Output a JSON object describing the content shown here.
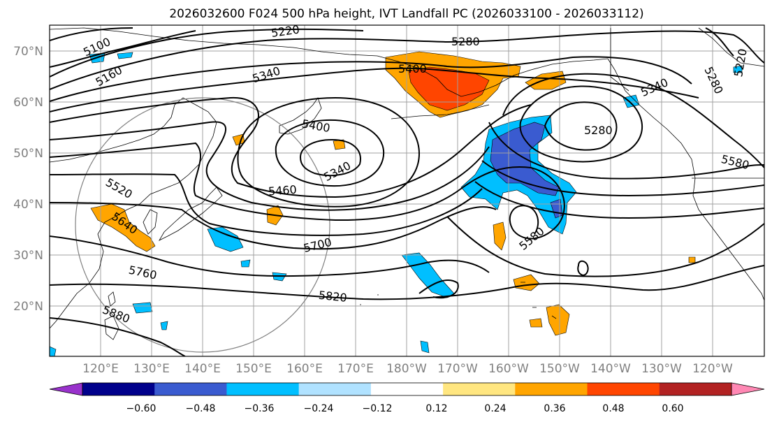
{
  "title": "2026032600 F024 500 hPa height, IVT Landfall PC (2026033100 - 2026033112)",
  "lat_labels": [
    "70°N",
    "60°N",
    "50°N",
    "40°N",
    "30°N",
    "20°N"
  ],
  "lon_labels": [
    "120°E",
    "130°E",
    "140°E",
    "150°E",
    "160°E",
    "170°E",
    "180°W",
    "170°W",
    "160°W",
    "150°W",
    "140°W",
    "130°W",
    "120°W"
  ],
  "contour_labels": [
    "5100",
    "5160",
    "5220",
    "5280",
    "5340",
    "5400",
    "5400",
    "5340",
    "5460",
    "5520",
    "5640",
    "5700",
    "5760",
    "5820",
    "5880",
    "5340",
    "5280",
    "5580",
    "5580",
    "5220",
    "5280"
  ],
  "colorbar": {
    "ticks": [
      "−0.60",
      "−0.48",
      "−0.36",
      "−0.24",
      "−0.12",
      "0.12",
      "0.24",
      "0.36",
      "0.48",
      "0.60"
    ],
    "under_color": "#9932cc",
    "over_color": "#ff88b4",
    "colors": [
      "#00008b",
      "#3a5bd0",
      "#00bfff",
      "#b0e2ff",
      "#ffffff",
      "#ffe680",
      "#ffa500",
      "#ff4500",
      "#b22222"
    ]
  },
  "colors": {
    "strong_positive": "#ff4500",
    "positive": "#ffa500",
    "negative": "#00bfff",
    "strong_negative": "#3a5bd0",
    "contour": "#000000",
    "grid": "#a0a0a0"
  }
}
